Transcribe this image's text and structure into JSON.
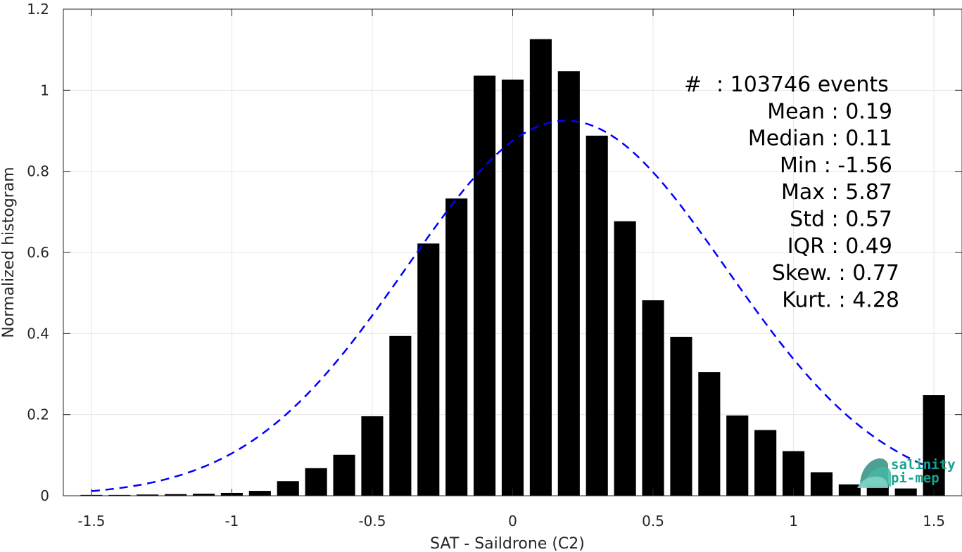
{
  "chart_data": {
    "type": "bar",
    "xlabel": "SAT - Saildrone (C2)",
    "ylabel": "Normalized histogram",
    "xlim": [
      -1.6,
      1.6
    ],
    "ylim": [
      0,
      1.2
    ],
    "xticks": [
      -1.5,
      -1,
      -0.5,
      0,
      0.5,
      1,
      1.5
    ],
    "xtick_labels": [
      "-1.5",
      "-1",
      "-0.5",
      "0",
      "0.5",
      "1",
      "1.5"
    ],
    "yticks": [
      0,
      0.2,
      0.4,
      0.6,
      0.8,
      1,
      1.2
    ],
    "ytick_labels": [
      "0",
      "0.2",
      "0.4",
      "0.6",
      "0.8",
      "1",
      "1.2"
    ],
    "grid": true,
    "bar_color": "#000000",
    "bin_width": 0.1,
    "bins": [
      -1.5,
      -1.4,
      -1.3,
      -1.2,
      -1.1,
      -1.0,
      -0.9,
      -0.8,
      -0.7,
      -0.6,
      -0.5,
      -0.4,
      -0.3,
      -0.2,
      -0.1,
      0.0,
      0.1,
      0.2,
      0.3,
      0.4,
      0.5,
      0.6,
      0.7,
      0.8,
      0.9,
      1.0,
      1.1,
      1.2,
      1.3,
      1.4,
      1.5
    ],
    "values": [
      0.002,
      0.002,
      0.003,
      0.004,
      0.005,
      0.007,
      0.012,
      0.036,
      0.068,
      0.101,
      0.196,
      0.394,
      0.622,
      0.733,
      1.036,
      1.026,
      1.126,
      1.047,
      0.888,
      0.677,
      0.482,
      0.392,
      0.305,
      0.198,
      0.162,
      0.11,
      0.058,
      0.028,
      0.03,
      0.018,
      0.248
    ],
    "fit": {
      "type": "gaussian",
      "mean": 0.19,
      "std": 0.57,
      "peak": 0.925,
      "color": "#0000ff",
      "style": "dashed",
      "x_range": [
        -1.5,
        1.5
      ]
    },
    "annotations": [
      {
        "label": "#",
        "value": ":  103746 events"
      },
      {
        "label": "Mean",
        "value": " : 0.19"
      },
      {
        "label": "Median",
        "value": " : 0.11"
      },
      {
        "label": "Min",
        "value": " : -1.56"
      },
      {
        "label": "Max",
        "value": " : 5.87"
      },
      {
        "label": "Std",
        "value": " : 0.57"
      },
      {
        "label": "IQR",
        "value": " : 0.49"
      },
      {
        "label": "Skew.",
        "value": " : 0.77"
      },
      {
        "label": "Kurt.",
        "value": " : 4.28"
      }
    ]
  },
  "logo": {
    "line1": "salinity",
    "line2": "pi-mep",
    "color": "#17a38e"
  }
}
